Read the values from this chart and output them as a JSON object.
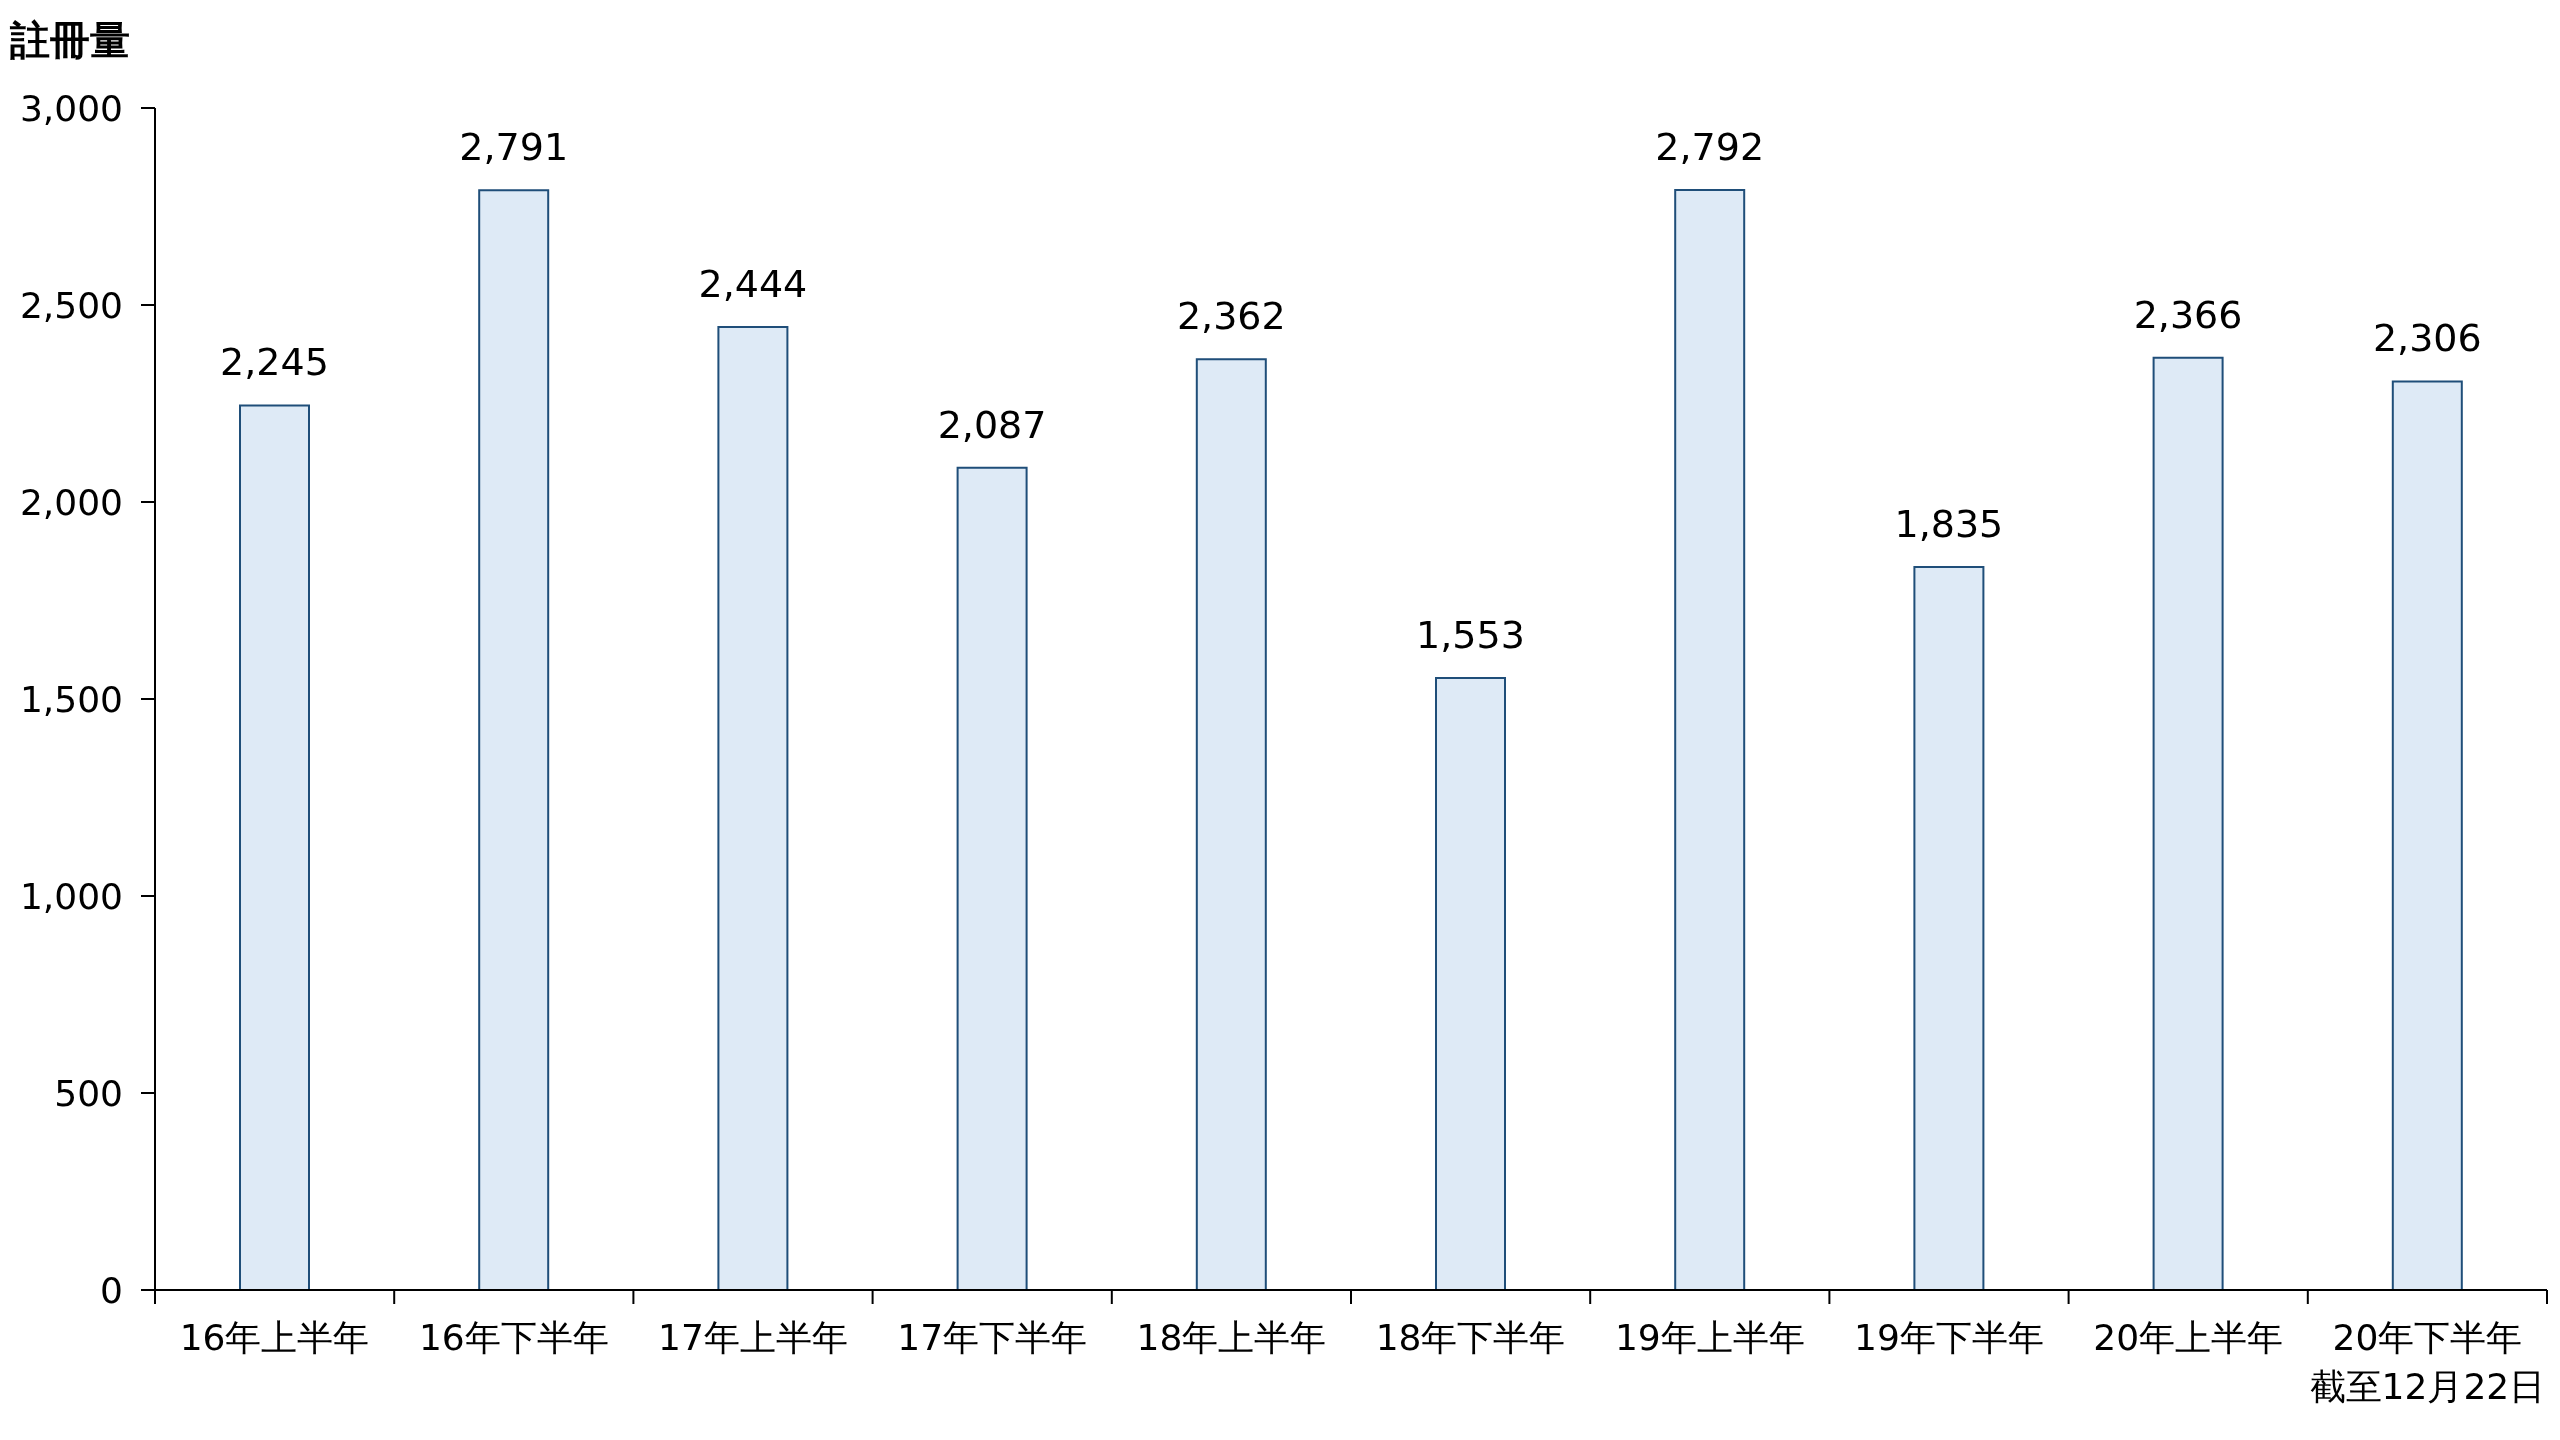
{
  "chart_data": {
    "type": "bar",
    "ylabel": "註冊量",
    "categories": [
      "16年上半年",
      "16年下半年",
      "17年上半年",
      "17年下半年",
      "18年上半年",
      "18年下半年",
      "19年上半年",
      "19年下半年",
      "20年上半年",
      "20年下半年截至12月22日"
    ],
    "values": [
      2245,
      2791,
      2444,
      2087,
      2362,
      1553,
      2792,
      1835,
      2366,
      2306
    ],
    "value_labels": [
      "2,245",
      "2,791",
      "2,444",
      "2,087",
      "2,362",
      "1,553",
      "2,792",
      "1,835",
      "2,366",
      "2,306"
    ],
    "color": "#deeaf6",
    "ylim": [
      0,
      3000
    ],
    "yticks": [
      {
        "value": 0,
        "label": "0"
      },
      {
        "value": 500,
        "label": "500"
      },
      {
        "value": 1000,
        "label": "1,000"
      },
      {
        "value": 1500,
        "label": "1,500"
      },
      {
        "value": 2000,
        "label": "2,000"
      },
      {
        "value": 2500,
        "label": "2,500"
      },
      {
        "value": 3000,
        "label": "3,000"
      }
    ]
  }
}
